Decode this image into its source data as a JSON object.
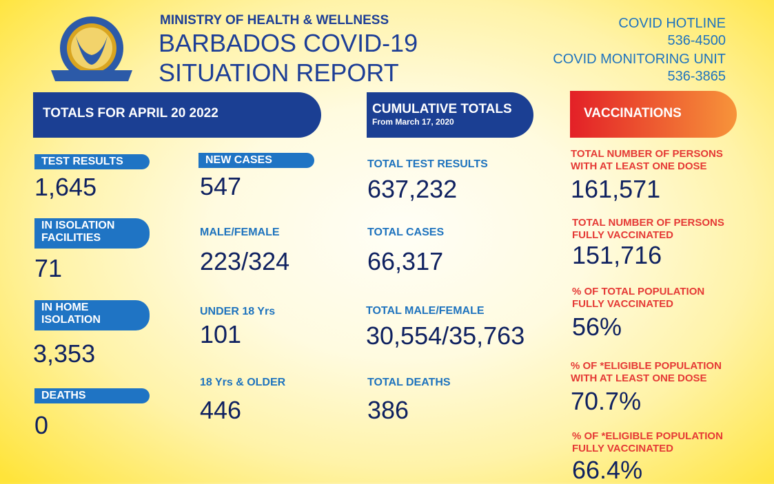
{
  "header": {
    "ministry": "MINISTRY OF HEALTH & WELLNESS",
    "title_line1": "BARBADOS COVID-19",
    "title_line2": "SITUATION REPORT",
    "logo_text": "MINISTRY OF HEALTH AND WELLNESS · BARBADOS"
  },
  "hotline": {
    "label": "COVID HOTLINE",
    "number": "536-4500",
    "unit_label": "COVID MONITORING UNIT",
    "unit_number": "536-3865"
  },
  "daily": {
    "banner": "TOTALS FOR APRIL 20 2022",
    "test_results": {
      "label": "TEST RESULTS",
      "value": "1,645"
    },
    "isolation_facilities": {
      "label": "IN ISOLATION FACILITIES",
      "value": "71"
    },
    "home_isolation": {
      "label": "IN HOME ISOLATION",
      "value": "3,353"
    },
    "deaths": {
      "label": "DEATHS",
      "value": "0"
    },
    "new_cases": {
      "label": "NEW CASES",
      "value": "547"
    },
    "male_female": {
      "label": "MALE/FEMALE",
      "value": "223/324"
    },
    "under_18": {
      "label": "UNDER 18 Yrs",
      "value": "101"
    },
    "over_18": {
      "label": "18 Yrs & OLDER",
      "value": "446"
    }
  },
  "cumulative": {
    "banner": "CUMULATIVE TOTALS",
    "subtitle": "From March 17, 2020",
    "test_results": {
      "label": "TOTAL TEST RESULTS",
      "value": "637,232"
    },
    "cases": {
      "label": "TOTAL CASES",
      "value": "66,317"
    },
    "male_female": {
      "label": "TOTAL MALE/FEMALE",
      "value": "30,554/35,763"
    },
    "deaths": {
      "label": "TOTAL DEATHS",
      "value": "386"
    }
  },
  "vaccinations": {
    "banner": "VACCINATIONS",
    "items": [
      {
        "label1": "TOTAL NUMBER OF PERSONS",
        "label2": "WITH AT LEAST ONE DOSE",
        "value": "161,571"
      },
      {
        "label1": "TOTAL NUMBER OF PERSONS",
        "label2": "FULLY VACCINATED",
        "value": "151,716"
      },
      {
        "label1": "% OF TOTAL POPULATION",
        "label2": "FULLY VACCINATED",
        "value": "56%"
      },
      {
        "label1": "% OF *ELIGIBLE POPULATION",
        "label2": "WITH AT LEAST ONE DOSE",
        "value": "70.7%"
      },
      {
        "label1": "% OF *ELIGIBLE POPULATION",
        "label2": "FULLY VACCINATED",
        "value": "66.4%"
      }
    ]
  },
  "colors": {
    "navy": "#1b3f93",
    "blue": "#1f74c4",
    "red": "#e53935",
    "orange": "#f7943a"
  }
}
